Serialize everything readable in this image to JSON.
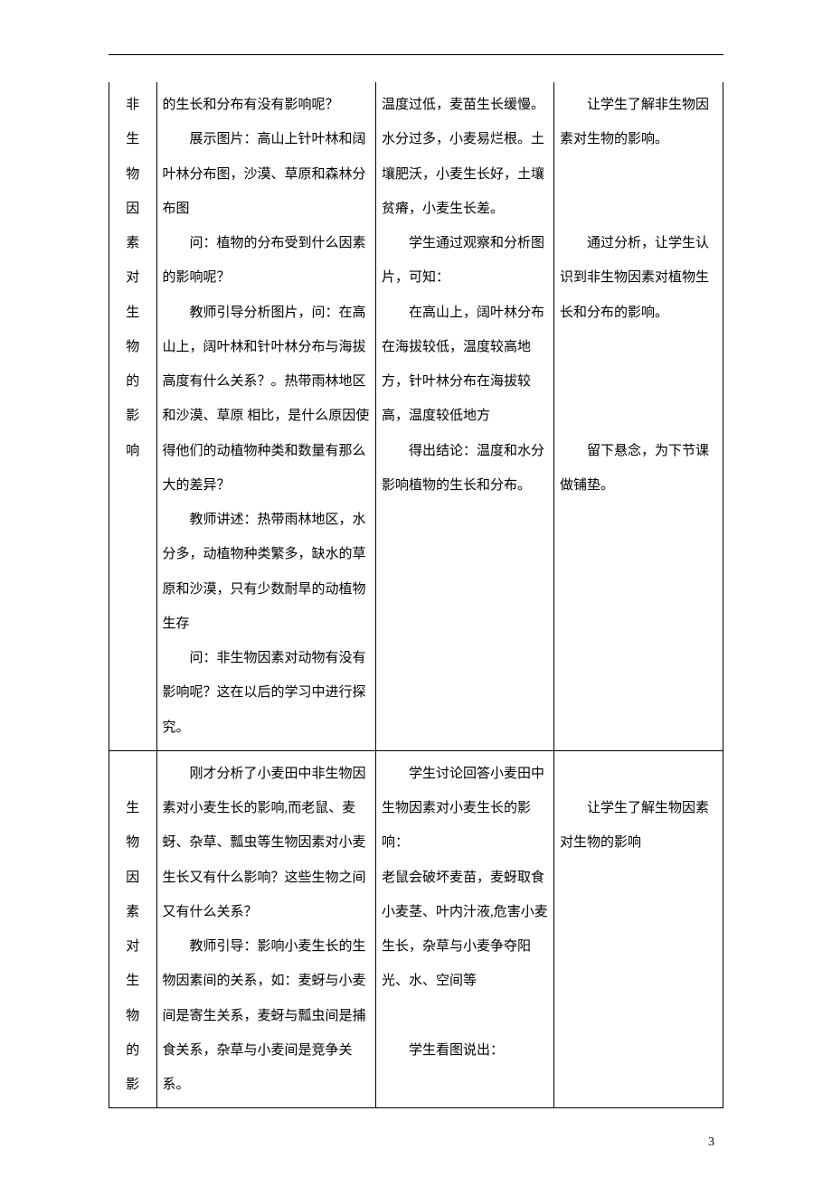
{
  "page_number": "3",
  "rows": [
    {
      "col1_chars": [
        "非",
        "生",
        "物",
        "因",
        "素",
        "对",
        "生",
        "物",
        "的",
        "影",
        "响"
      ],
      "col2_paras": [
        {
          "t": "的生长和分布有没有影响呢？",
          "indent": false
        },
        {
          "t": "展示图片：高山上针叶林和阔叶林分布图，沙漠、草原和森林分布图",
          "indent": true
        },
        {
          "t": "问：植物的分布受到什么因素的影响呢？",
          "indent": true
        },
        {
          "t": "教师引导分析图片，问：在高山上，阔叶林和针叶林分布与海拔高度有什么关系？。热带雨林地区和沙漠、草原 相比，是什么原因使得他们的动植物种类和数量有那么大的差异？",
          "indent": true
        },
        {
          "t": "教师讲述：热带雨林地区，水分多，动植物种类繁多，缺水的草原和沙漠，只有少数耐旱的动植物生存",
          "indent": true
        },
        {
          "t": "问：非生物因素对动物有没有影响呢？这在以后的学习中进行探究。",
          "indent": true
        }
      ],
      "col3_paras": [
        {
          "t": "温度过低，麦苗生长缓慢。水分过多，小麦易烂根。土壤肥沃，小麦生长好，土壤贫瘠，小麦生长差。",
          "indent": false
        },
        {
          "t": "学生通过观察和分析图片，可知：",
          "indent": true
        },
        {
          "t": "在高山上，阔叶林分布在海拔较低，温度较高地方，针叶林分布在海拔较高，温度较低地方",
          "indent": true
        },
        {
          "t": "得出结论：温度和水分影响植物的生长和分布。",
          "indent": true
        }
      ],
      "col4_paras": [
        {
          "t": "让学生了解非生物因素对生物的影响。",
          "indent": true
        },
        {
          "t": "",
          "indent": false
        },
        {
          "t": "",
          "indent": false
        },
        {
          "t": "通过分析，让学生认识到非生物因素对植物生长和分布的影响。",
          "indent": true
        },
        {
          "t": "",
          "indent": false
        },
        {
          "t": "",
          "indent": false
        },
        {
          "t": "",
          "indent": false
        },
        {
          "t": "留下悬念，为下节课做铺垫。",
          "indent": true
        }
      ]
    },
    {
      "col1_chars": [
        "",
        "生",
        "物",
        "因",
        "素",
        "对",
        "生",
        "物",
        "的",
        "影"
      ],
      "col2_paras": [
        {
          "t": "刚才分析了小麦田中非生物因素对小麦生长的影响,而老鼠、麦蚜、杂草、瓢虫等生物因素对小麦生长又有什么影响？这些生物之间又有什么关系？",
          "indent": true
        },
        {
          "t": "教师引导：影响小麦生长的生物因素间的关系，如：麦蚜与小麦间是寄生关系，麦蚜与瓢虫间是捕食关系，杂草与小麦间是竞争关系。",
          "indent": true
        }
      ],
      "col3_paras": [
        {
          "t": "学生讨论回答小麦田中生物因素对小麦生长的影响：",
          "indent": true
        },
        {
          "t": "老鼠会破坏麦苗，麦蚜取食小麦茎、叶内汁液,危害小麦生长，杂草与小麦争夺阳光、水、空间等",
          "indent": false
        },
        {
          "t": "",
          "indent": false
        },
        {
          "t": "学生看图说出：",
          "indent": true
        }
      ],
      "col4_paras": [
        {
          "t": "",
          "indent": false
        },
        {
          "t": "让学生了解生物因素对生物的影响",
          "indent": true
        }
      ]
    }
  ]
}
